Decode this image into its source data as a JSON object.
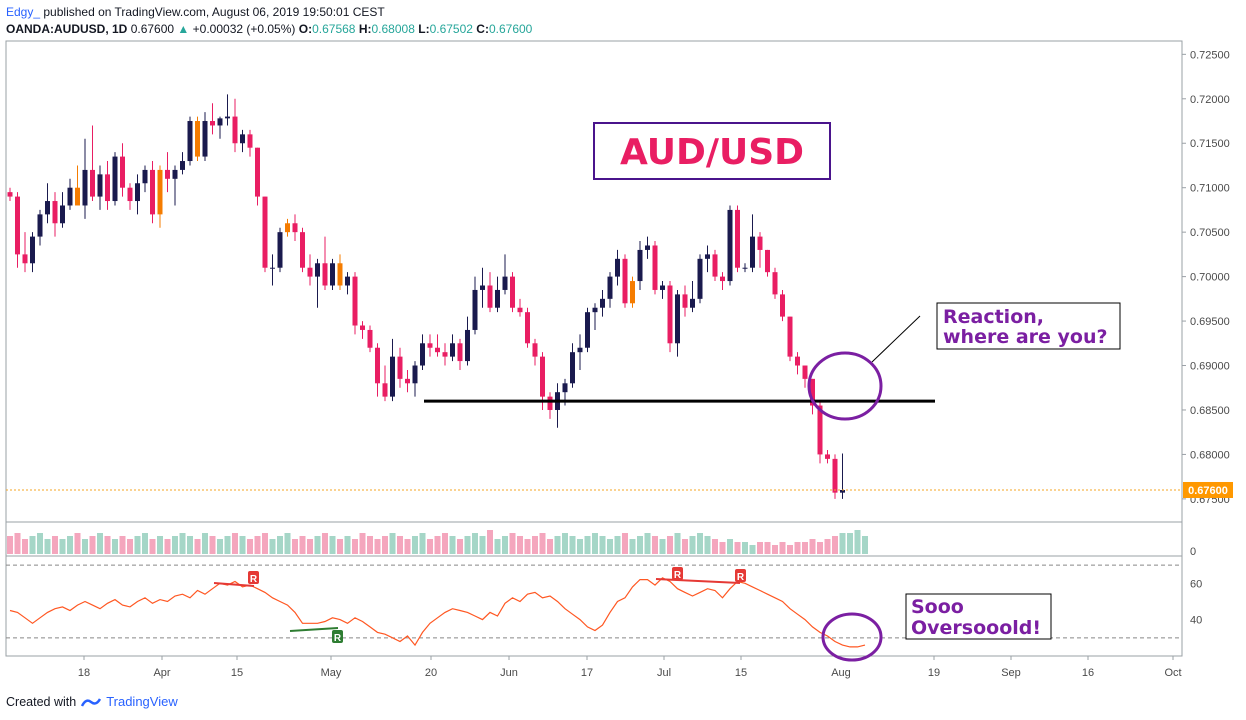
{
  "header": {
    "author": "Edgy_",
    "published": "published on TradingView.com, August 06, 2019 19:50:01 CEST",
    "symbol": "OANDA:AUDUSD, 1D",
    "last": "0.67600",
    "change_arrow": "▲",
    "change": "+0.00032 (+0.05%)",
    "o_label": "O:",
    "o_value": "0.67568",
    "h_label": "H:",
    "h_value": "0.68008",
    "l_label": "L:",
    "l_value": "0.67502",
    "c_label": "C:",
    "c_value": "0.67600"
  },
  "footer": {
    "created_with": "Created with",
    "brand": "TradingView"
  },
  "annotations": {
    "title": "AUD/USD",
    "reaction_line1": "Reaction,",
    "reaction_line2": "where are you?",
    "oversold_line1": "Sooo",
    "oversold_line2": "Oversooold!",
    "divergence_marker": "R"
  },
  "colors": {
    "bull": "#1a1a4e",
    "bear": "#e91e63",
    "alt_bull": "#f57c00",
    "rsi_line": "#ff5722",
    "purple": "#7b1fa2",
    "support": "#000000",
    "price_line": "#f5a623"
  },
  "chart_data": [
    {
      "type": "candlestick",
      "title": "",
      "price_axis_ticks": [
        "0.72500",
        "0.72000",
        "0.71500",
        "0.71000",
        "0.70500",
        "0.70000",
        "0.69500",
        "0.69000",
        "0.68500",
        "0.68000",
        "0.67500"
      ],
      "time_axis_ticks": [
        "18",
        "Apr",
        "15",
        "May",
        "20",
        "Jun",
        "17",
        "Jul",
        "15",
        "Aug",
        "19",
        "Sep",
        "16",
        "Oct"
      ],
      "ylim": [
        0.6724,
        0.7265
      ],
      "current_price_label": "0.67600",
      "current_price": 0.676,
      "support_level": 0.686,
      "candles": [
        {
          "o": 0.7095,
          "h": 0.71,
          "l": 0.7085,
          "c": 0.709
        },
        {
          "o": 0.709,
          "h": 0.7095,
          "l": 0.701,
          "c": 0.7025
        },
        {
          "o": 0.7025,
          "h": 0.705,
          "l": 0.7005,
          "c": 0.7015
        },
        {
          "o": 0.7015,
          "h": 0.705,
          "l": 0.7005,
          "c": 0.7045
        },
        {
          "o": 0.7045,
          "h": 0.7075,
          "l": 0.7035,
          "c": 0.707
        },
        {
          "o": 0.707,
          "h": 0.7105,
          "l": 0.706,
          "c": 0.7085
        },
        {
          "o": 0.7085,
          "h": 0.7095,
          "l": 0.7045,
          "c": 0.706
        },
        {
          "o": 0.706,
          "h": 0.7095,
          "l": 0.7055,
          "c": 0.708
        },
        {
          "o": 0.708,
          "h": 0.711,
          "l": 0.7075,
          "c": 0.71
        },
        {
          "o": 0.71,
          "h": 0.7125,
          "l": 0.7085,
          "c": 0.708,
          "alt": true
        },
        {
          "o": 0.708,
          "h": 0.7155,
          "l": 0.7065,
          "c": 0.712
        },
        {
          "o": 0.712,
          "h": 0.717,
          "l": 0.7085,
          "c": 0.709
        },
        {
          "o": 0.709,
          "h": 0.7125,
          "l": 0.7075,
          "c": 0.7115
        },
        {
          "o": 0.7115,
          "h": 0.713,
          "l": 0.7075,
          "c": 0.7085
        },
        {
          "o": 0.7085,
          "h": 0.714,
          "l": 0.708,
          "c": 0.7135
        },
        {
          "o": 0.7135,
          "h": 0.715,
          "l": 0.709,
          "c": 0.71
        },
        {
          "o": 0.71,
          "h": 0.7105,
          "l": 0.7075,
          "c": 0.7085
        },
        {
          "o": 0.7085,
          "h": 0.7115,
          "l": 0.707,
          "c": 0.7105
        },
        {
          "o": 0.7105,
          "h": 0.7125,
          "l": 0.7095,
          "c": 0.712
        },
        {
          "o": 0.712,
          "h": 0.713,
          "l": 0.706,
          "c": 0.707
        },
        {
          "o": 0.707,
          "h": 0.7125,
          "l": 0.7055,
          "c": 0.712,
          "alt": true
        },
        {
          "o": 0.712,
          "h": 0.714,
          "l": 0.7095,
          "c": 0.711
        },
        {
          "o": 0.711,
          "h": 0.7125,
          "l": 0.708,
          "c": 0.712
        },
        {
          "o": 0.712,
          "h": 0.714,
          "l": 0.7115,
          "c": 0.713
        },
        {
          "o": 0.713,
          "h": 0.718,
          "l": 0.7125,
          "c": 0.7175
        },
        {
          "o": 0.7175,
          "h": 0.718,
          "l": 0.713,
          "c": 0.7135,
          "alt": true
        },
        {
          "o": 0.7135,
          "h": 0.7185,
          "l": 0.713,
          "c": 0.7175
        },
        {
          "o": 0.7175,
          "h": 0.7195,
          "l": 0.716,
          "c": 0.717
        },
        {
          "o": 0.717,
          "h": 0.718,
          "l": 0.7155,
          "c": 0.7178
        },
        {
          "o": 0.7178,
          "h": 0.7205,
          "l": 0.717,
          "c": 0.718
        },
        {
          "o": 0.718,
          "h": 0.72,
          "l": 0.714,
          "c": 0.715
        },
        {
          "o": 0.715,
          "h": 0.7165,
          "l": 0.714,
          "c": 0.716
        },
        {
          "o": 0.716,
          "h": 0.7165,
          "l": 0.7135,
          "c": 0.7145
        },
        {
          "o": 0.7145,
          "h": 0.7145,
          "l": 0.708,
          "c": 0.709
        },
        {
          "o": 0.709,
          "h": 0.709,
          "l": 0.7005,
          "c": 0.701
        },
        {
          "o": 0.701,
          "h": 0.7025,
          "l": 0.699,
          "c": 0.701
        },
        {
          "o": 0.701,
          "h": 0.7055,
          "l": 0.7005,
          "c": 0.705
        },
        {
          "o": 0.705,
          "h": 0.7065,
          "l": 0.7045,
          "c": 0.706,
          "alt": true
        },
        {
          "o": 0.706,
          "h": 0.707,
          "l": 0.704,
          "c": 0.705
        },
        {
          "o": 0.705,
          "h": 0.7055,
          "l": 0.7005,
          "c": 0.701
        },
        {
          "o": 0.701,
          "h": 0.7025,
          "l": 0.699,
          "c": 0.7
        },
        {
          "o": 0.7,
          "h": 0.702,
          "l": 0.6965,
          "c": 0.7015
        },
        {
          "o": 0.7015,
          "h": 0.7045,
          "l": 0.6985,
          "c": 0.699
        },
        {
          "o": 0.699,
          "h": 0.702,
          "l": 0.6985,
          "c": 0.7015
        },
        {
          "o": 0.7015,
          "h": 0.7025,
          "l": 0.6985,
          "c": 0.699,
          "alt": true
        },
        {
          "o": 0.699,
          "h": 0.7005,
          "l": 0.698,
          "c": 0.7
        },
        {
          "o": 0.7,
          "h": 0.7005,
          "l": 0.6935,
          "c": 0.6945
        },
        {
          "o": 0.6945,
          "h": 0.695,
          "l": 0.693,
          "c": 0.694
        },
        {
          "o": 0.694,
          "h": 0.6945,
          "l": 0.6915,
          "c": 0.692
        },
        {
          "o": 0.692,
          "h": 0.6925,
          "l": 0.6865,
          "c": 0.688
        },
        {
          "o": 0.688,
          "h": 0.69,
          "l": 0.686,
          "c": 0.6865
        },
        {
          "o": 0.6865,
          "h": 0.693,
          "l": 0.686,
          "c": 0.691
        },
        {
          "o": 0.691,
          "h": 0.692,
          "l": 0.6875,
          "c": 0.6885
        },
        {
          "o": 0.6885,
          "h": 0.6895,
          "l": 0.687,
          "c": 0.688
        },
        {
          "o": 0.688,
          "h": 0.6905,
          "l": 0.6865,
          "c": 0.69
        },
        {
          "o": 0.69,
          "h": 0.6935,
          "l": 0.6895,
          "c": 0.6925
        },
        {
          "o": 0.6925,
          "h": 0.6935,
          "l": 0.691,
          "c": 0.692
        },
        {
          "o": 0.692,
          "h": 0.6935,
          "l": 0.691,
          "c": 0.6915
        },
        {
          "o": 0.6915,
          "h": 0.6925,
          "l": 0.69,
          "c": 0.691
        },
        {
          "o": 0.691,
          "h": 0.6935,
          "l": 0.6905,
          "c": 0.6925
        },
        {
          "o": 0.6925,
          "h": 0.693,
          "l": 0.6895,
          "c": 0.6905
        },
        {
          "o": 0.6905,
          "h": 0.6955,
          "l": 0.69,
          "c": 0.694
        },
        {
          "o": 0.694,
          "h": 0.7,
          "l": 0.6935,
          "c": 0.6985
        },
        {
          "o": 0.6985,
          "h": 0.701,
          "l": 0.6965,
          "c": 0.699
        },
        {
          "o": 0.699,
          "h": 0.7005,
          "l": 0.696,
          "c": 0.6965
        },
        {
          "o": 0.6965,
          "h": 0.7,
          "l": 0.696,
          "c": 0.6985
        },
        {
          "o": 0.6985,
          "h": 0.7025,
          "l": 0.698,
          "c": 0.7
        },
        {
          "o": 0.7,
          "h": 0.7005,
          "l": 0.696,
          "c": 0.6965
        },
        {
          "o": 0.6965,
          "h": 0.6975,
          "l": 0.6955,
          "c": 0.696
        },
        {
          "o": 0.696,
          "h": 0.6965,
          "l": 0.692,
          "c": 0.6925
        },
        {
          "o": 0.6925,
          "h": 0.693,
          "l": 0.69,
          "c": 0.691
        },
        {
          "o": 0.691,
          "h": 0.6915,
          "l": 0.685,
          "c": 0.6865
        },
        {
          "o": 0.6865,
          "h": 0.687,
          "l": 0.684,
          "c": 0.685
        },
        {
          "o": 0.685,
          "h": 0.688,
          "l": 0.683,
          "c": 0.687
        },
        {
          "o": 0.687,
          "h": 0.6885,
          "l": 0.6855,
          "c": 0.688
        },
        {
          "o": 0.688,
          "h": 0.6925,
          "l": 0.6875,
          "c": 0.6915
        },
        {
          "o": 0.6915,
          "h": 0.6935,
          "l": 0.6895,
          "c": 0.692
        },
        {
          "o": 0.692,
          "h": 0.6965,
          "l": 0.6915,
          "c": 0.696
        },
        {
          "o": 0.696,
          "h": 0.697,
          "l": 0.694,
          "c": 0.6965
        },
        {
          "o": 0.6965,
          "h": 0.6985,
          "l": 0.6955,
          "c": 0.6975
        },
        {
          "o": 0.6975,
          "h": 0.7005,
          "l": 0.6965,
          "c": 0.7
        },
        {
          "o": 0.7,
          "h": 0.703,
          "l": 0.699,
          "c": 0.702
        },
        {
          "o": 0.702,
          "h": 0.7025,
          "l": 0.6965,
          "c": 0.697
        },
        {
          "o": 0.697,
          "h": 0.7,
          "l": 0.6965,
          "c": 0.6995,
          "alt": true
        },
        {
          "o": 0.6995,
          "h": 0.704,
          "l": 0.6985,
          "c": 0.703
        },
        {
          "o": 0.703,
          "h": 0.7045,
          "l": 0.702,
          "c": 0.7035
        },
        {
          "o": 0.7035,
          "h": 0.704,
          "l": 0.698,
          "c": 0.6985
        },
        {
          "o": 0.6985,
          "h": 0.6995,
          "l": 0.6975,
          "c": 0.699
        },
        {
          "o": 0.699,
          "h": 0.6995,
          "l": 0.6915,
          "c": 0.6925
        },
        {
          "o": 0.6925,
          "h": 0.6985,
          "l": 0.691,
          "c": 0.698
        },
        {
          "o": 0.698,
          "h": 0.699,
          "l": 0.6955,
          "c": 0.6965
        },
        {
          "o": 0.6965,
          "h": 0.6995,
          "l": 0.696,
          "c": 0.6975
        },
        {
          "o": 0.6975,
          "h": 0.7025,
          "l": 0.697,
          "c": 0.702
        },
        {
          "o": 0.702,
          "h": 0.7035,
          "l": 0.7005,
          "c": 0.7025
        },
        {
          "o": 0.7025,
          "h": 0.703,
          "l": 0.6995,
          "c": 0.7
        },
        {
          "o": 0.7,
          "h": 0.7005,
          "l": 0.6985,
          "c": 0.6995
        },
        {
          "o": 0.6995,
          "h": 0.708,
          "l": 0.699,
          "c": 0.7075
        },
        {
          "o": 0.7075,
          "h": 0.708,
          "l": 0.7005,
          "c": 0.701
        },
        {
          "o": 0.701,
          "h": 0.7015,
          "l": 0.7005,
          "c": 0.701
        },
        {
          "o": 0.701,
          "h": 0.707,
          "l": 0.7005,
          "c": 0.7045
        },
        {
          "o": 0.7045,
          "h": 0.705,
          "l": 0.701,
          "c": 0.703
        },
        {
          "o": 0.703,
          "h": 0.703,
          "l": 0.7,
          "c": 0.7005
        },
        {
          "o": 0.7005,
          "h": 0.701,
          "l": 0.6975,
          "c": 0.698
        },
        {
          "o": 0.698,
          "h": 0.6985,
          "l": 0.695,
          "c": 0.6955
        },
        {
          "o": 0.6955,
          "h": 0.6955,
          "l": 0.6905,
          "c": 0.691
        },
        {
          "o": 0.691,
          "h": 0.6915,
          "l": 0.689,
          "c": 0.69
        },
        {
          "o": 0.69,
          "h": 0.69,
          "l": 0.6875,
          "c": 0.6885
        },
        {
          "o": 0.6885,
          "h": 0.6885,
          "l": 0.6845,
          "c": 0.6855
        },
        {
          "o": 0.6855,
          "h": 0.686,
          "l": 0.679,
          "c": 0.68
        },
        {
          "o": 0.68,
          "h": 0.6805,
          "l": 0.679,
          "c": 0.6795
        },
        {
          "o": 0.6795,
          "h": 0.68,
          "l": 0.675,
          "c": 0.6757
        },
        {
          "o": 0.6757,
          "h": 0.6801,
          "l": 0.675,
          "c": 0.676
        }
      ]
    },
    {
      "type": "bar",
      "title": "Volume",
      "axis_ticks": [
        "0"
      ],
      "values": [
        6,
        7,
        5,
        6,
        7,
        5,
        6,
        5,
        6,
        7,
        5,
        6,
        7,
        6,
        5,
        6,
        5,
        6,
        7,
        5,
        6,
        5,
        6,
        7,
        6,
        5,
        7,
        6,
        5,
        6,
        7,
        6,
        5,
        6,
        7,
        5,
        6,
        7,
        5,
        6,
        5,
        6,
        7,
        6,
        5,
        6,
        5,
        7,
        6,
        5,
        6,
        7,
        6,
        5,
        6,
        7,
        5,
        6,
        7,
        6,
        5,
        6,
        7,
        6,
        8,
        5,
        6,
        7,
        6,
        5,
        6,
        7,
        5,
        6,
        7,
        6,
        5,
        6,
        7,
        6,
        5,
        6,
        7,
        5,
        6,
        7,
        6,
        5,
        6,
        7,
        5,
        6,
        7,
        6,
        5,
        4,
        5,
        4,
        4,
        3,
        4,
        4,
        3,
        4,
        3,
        4,
        4,
        5,
        4,
        5,
        6,
        7,
        7,
        8,
        6
      ]
    },
    {
      "type": "line",
      "title": "RSI",
      "axis_ticks": [
        "60",
        "40"
      ],
      "levels": [
        70,
        30
      ],
      "ylim": [
        20,
        75
      ],
      "values": [
        45,
        44,
        41,
        38,
        41,
        44,
        46,
        47,
        45,
        48,
        50,
        48,
        46,
        49,
        51,
        48,
        47,
        50,
        52,
        49,
        51,
        50,
        53,
        54,
        52,
        56,
        54,
        57,
        60,
        59,
        61,
        58,
        59,
        57,
        55,
        52,
        50,
        48,
        44,
        38,
        38,
        38,
        39,
        41,
        40,
        38,
        41,
        39,
        36,
        33,
        32,
        30,
        28,
        31,
        26,
        33,
        38,
        41,
        44,
        46,
        45,
        44,
        42,
        40,
        44,
        42,
        49,
        52,
        50,
        54,
        55,
        52,
        53,
        50,
        46,
        43,
        40,
        36,
        34,
        37,
        44,
        50,
        52,
        58,
        62,
        62,
        59,
        63,
        61,
        57,
        55,
        53,
        55,
        57,
        56,
        52,
        57,
        61,
        60,
        58,
        56,
        54,
        52,
        50,
        46,
        43,
        40,
        36,
        33,
        31,
        28,
        26,
        25,
        25,
        26
      ],
      "divergence_labels": [
        "R",
        "R",
        "R",
        "R"
      ]
    }
  ]
}
